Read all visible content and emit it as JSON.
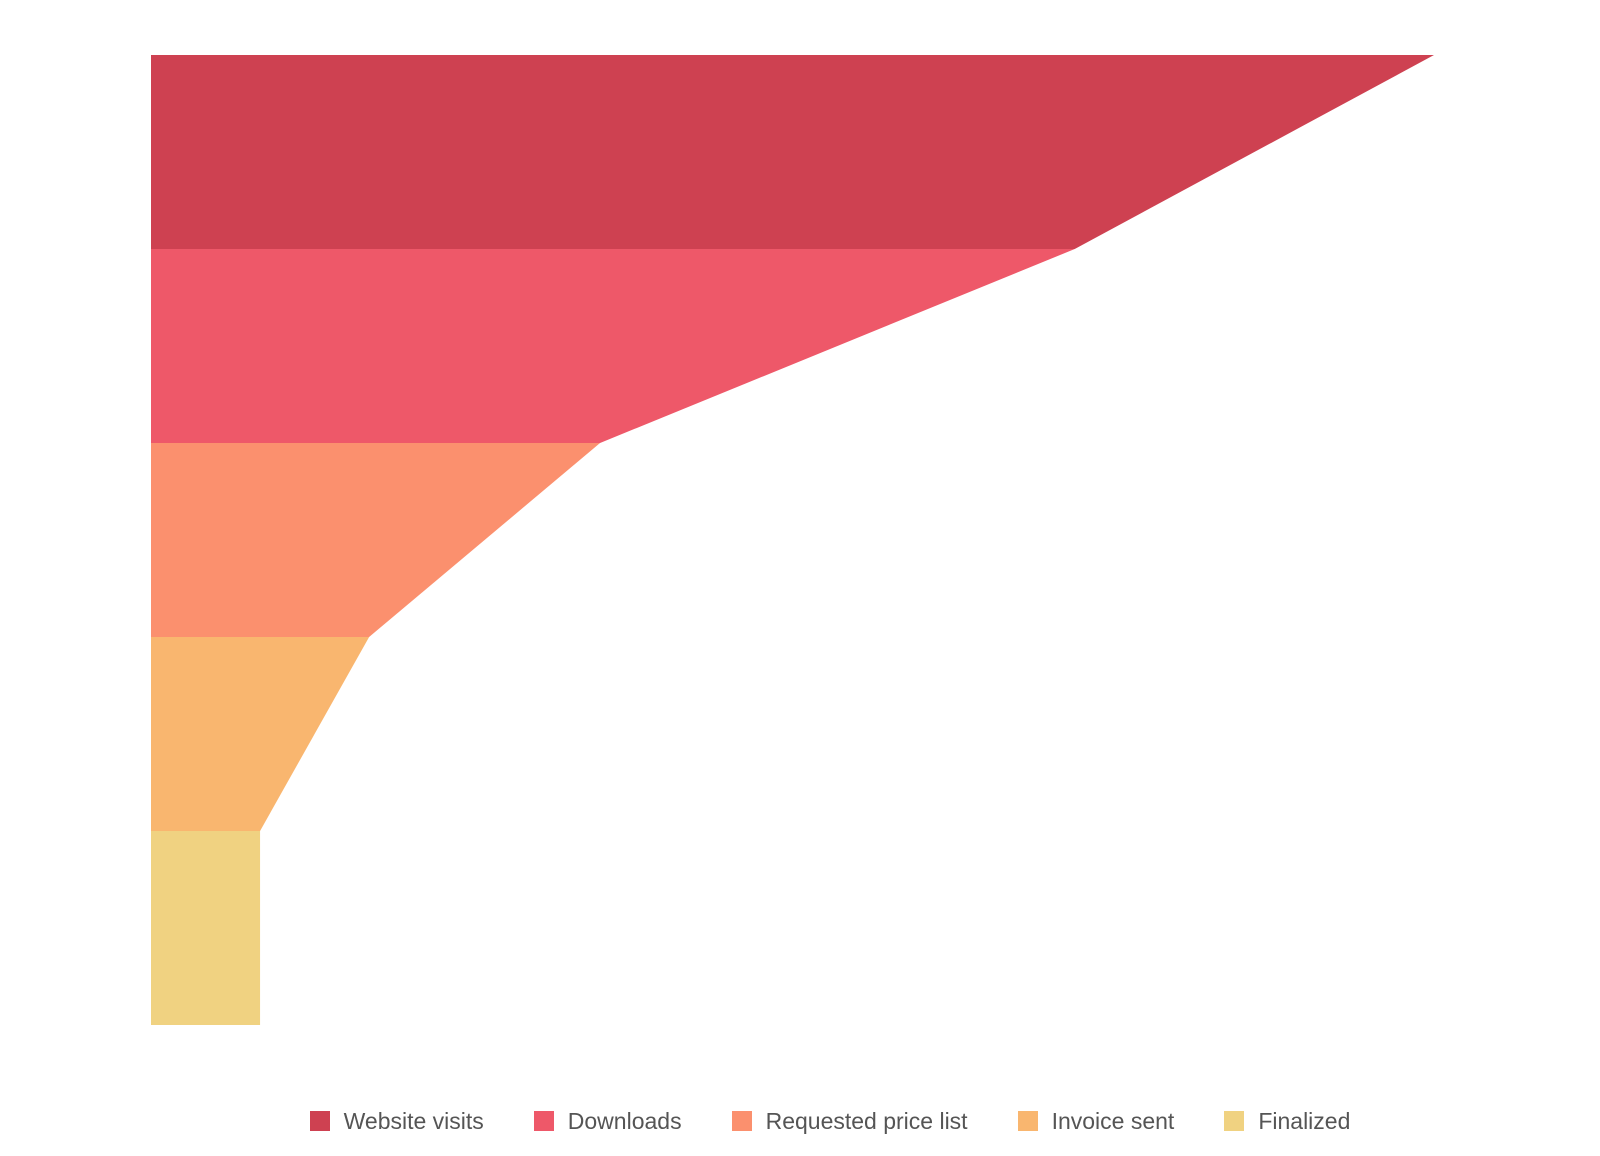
{
  "chart_data": {
    "type": "funnel",
    "orientation": "left-aligned",
    "x_max": 100,
    "stages": [
      {
        "name": "Website visits",
        "value": 100,
        "color": "#ce4151"
      },
      {
        "name": "Downloads",
        "value": 72,
        "color": "#ee5869"
      },
      {
        "name": "Requested price list",
        "value": 35,
        "color": "#fb906e"
      },
      {
        "name": "Invoice sent",
        "value": 17,
        "color": "#f9b66f"
      },
      {
        "name": "Finalized",
        "value": 8.5,
        "color": "#f0d281"
      }
    ],
    "legend": {
      "position": "bottom-center"
    }
  }
}
